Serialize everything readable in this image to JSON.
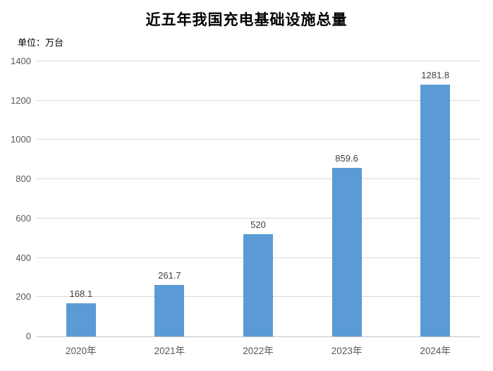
{
  "header": {
    "title": "近五年我国充电基础设施总量",
    "unit_label": "单位：万台"
  },
  "chart_data": {
    "type": "bar",
    "title": "近五年我国充电基础设施总量",
    "ylabel": "单位：万台",
    "xlabel": "",
    "categories": [
      "2020年",
      "2021年",
      "2022年",
      "2023年",
      "2024年"
    ],
    "values": [
      168.1,
      261.7,
      520,
      859.6,
      1281.8
    ],
    "data_labels": [
      "168.1",
      "261.7",
      "520",
      "859.6",
      "1281.8"
    ],
    "ylim": [
      0,
      1400
    ],
    "yticks": [
      0,
      200,
      400,
      600,
      800,
      1000,
      1200,
      1400
    ],
    "grid": true,
    "legend": "none",
    "colors": {
      "bar": "#5b9bd5",
      "gridline": "#d9d9d9",
      "axis_line": "#c3c3c3",
      "tick_label": "#595959",
      "data_label": "#404040",
      "title": "#000000",
      "background": "#ffffff"
    }
  }
}
